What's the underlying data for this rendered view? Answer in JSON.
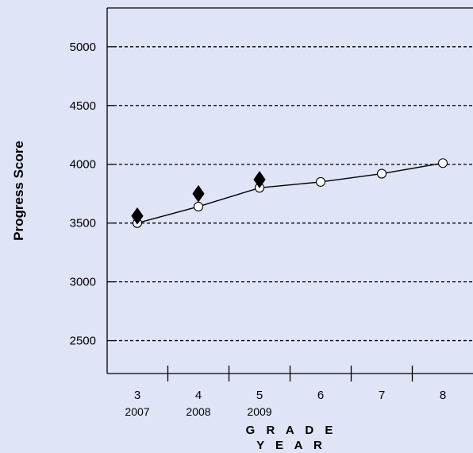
{
  "chart_data": {
    "type": "line",
    "xlabel": "G R A D E",
    "xlabel2": "Y E A R",
    "ylabel": "Progress Score",
    "ylim": [
      2220,
      5330
    ],
    "yticks": [
      2500,
      3000,
      3500,
      4000,
      4500,
      5000
    ],
    "ytick_labels": [
      "2500",
      "3000",
      "3500",
      "4000",
      "4500",
      "5000"
    ],
    "grid": "horizontal-dashed",
    "categories": [
      "3",
      "4",
      "5",
      "6",
      "7",
      "8"
    ],
    "years": [
      "2007",
      "2008",
      "2009",
      "",
      "",
      ""
    ],
    "series": [
      {
        "marker": "circle-open",
        "values": [
          3500,
          3640,
          3800,
          3850,
          3920,
          4010
        ]
      },
      {
        "marker": "diamond-filled",
        "values": [
          3560,
          3750,
          3870,
          null,
          null,
          null
        ]
      }
    ],
    "colors": {
      "background": "#dfe4f6",
      "line": "#000000",
      "grid": "#000000"
    }
  }
}
